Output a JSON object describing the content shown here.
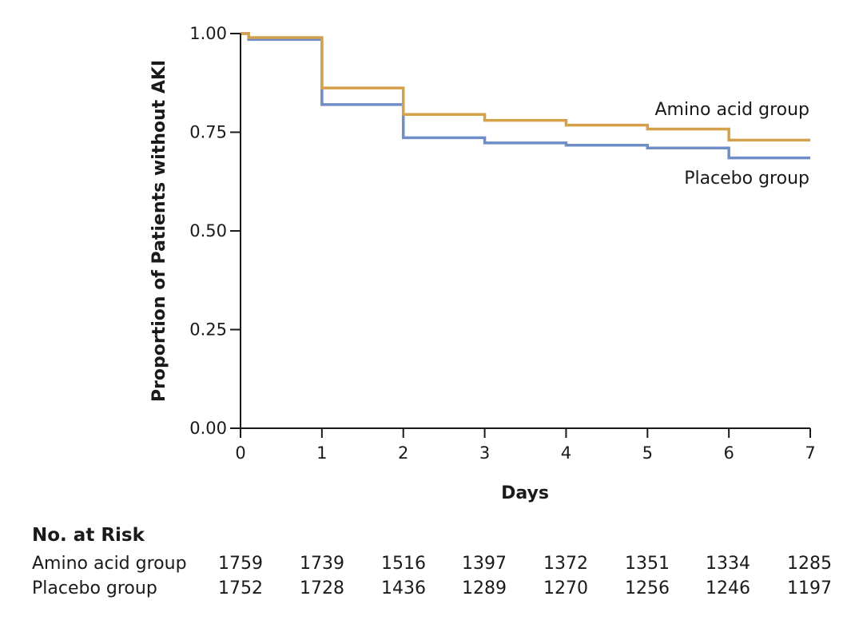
{
  "chart_data": {
    "type": "line",
    "subtype": "kaplan-meier step",
    "xlabel": "Days",
    "ylabel": "Proportion of Patients without AKI",
    "xlim": [
      0,
      7
    ],
    "ylim": [
      0,
      1
    ],
    "x_ticks": [
      "0",
      "1",
      "2",
      "3",
      "4",
      "5",
      "6",
      "7"
    ],
    "y_ticks": [
      "0.00",
      "0.25",
      "0.50",
      "0.75",
      "1.00"
    ],
    "grid": false,
    "series": [
      {
        "name": "Amino acid group",
        "label": "Amino acid group",
        "color": "#D4A04A",
        "steps": [
          {
            "x": 0,
            "y": 1.0
          },
          {
            "x": 0.1,
            "y": 0.99
          },
          {
            "x": 1,
            "y": 0.862
          },
          {
            "x": 2,
            "y": 0.795
          },
          {
            "x": 3,
            "y": 0.78
          },
          {
            "x": 4,
            "y": 0.768
          },
          {
            "x": 5,
            "y": 0.758
          },
          {
            "x": 6,
            "y": 0.73
          },
          {
            "x": 7,
            "y": 0.73
          }
        ]
      },
      {
        "name": "Placebo group",
        "label": "Placebo group",
        "color": "#6F8DC6",
        "steps": [
          {
            "x": 0,
            "y": 1.0
          },
          {
            "x": 0.1,
            "y": 0.985
          },
          {
            "x": 1,
            "y": 0.82
          },
          {
            "x": 2,
            "y": 0.736
          },
          {
            "x": 3,
            "y": 0.723
          },
          {
            "x": 4,
            "y": 0.717
          },
          {
            "x": 5,
            "y": 0.71
          },
          {
            "x": 6,
            "y": 0.685
          },
          {
            "x": 7,
            "y": 0.685
          }
        ]
      }
    ],
    "risk_table": {
      "title": "No. at Risk",
      "rows": [
        {
          "label": "Amino acid group",
          "values": [
            "1759",
            "1739",
            "1516",
            "1397",
            "1372",
            "1351",
            "1334",
            "1285"
          ]
        },
        {
          "label": "Placebo group",
          "values": [
            "1752",
            "1728",
            "1436",
            "1289",
            "1270",
            "1256",
            "1246",
            "1197"
          ]
        }
      ]
    }
  }
}
